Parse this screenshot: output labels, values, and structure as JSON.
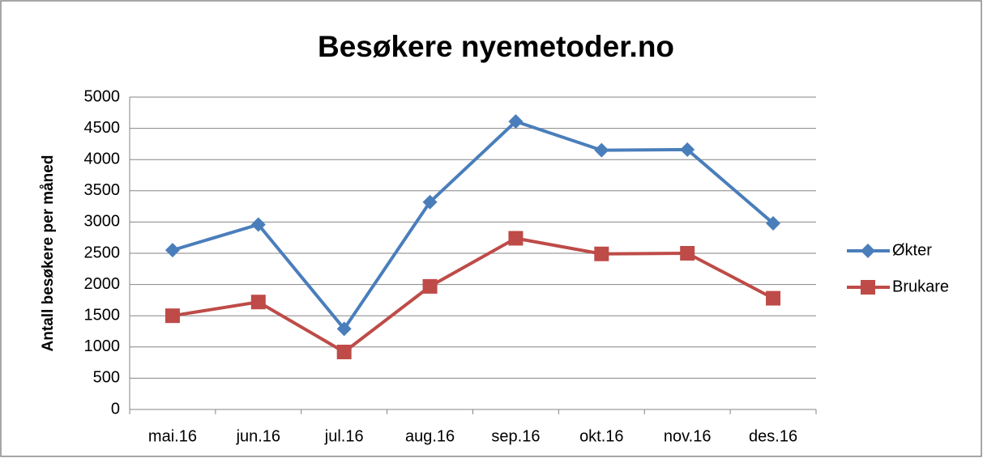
{
  "chart_data": {
    "type": "line",
    "title": "Besøkere nyemetoder.no",
    "y_label": "Antall besøkere per måned",
    "categories": [
      "mai.16",
      "jun.16",
      "jul.16",
      "aug.16",
      "sep.16",
      "okt.16",
      "nov.16",
      "des.16"
    ],
    "series": [
      {
        "name": "Økter",
        "color": "#4a7ebb",
        "marker": "diamond",
        "values": [
          2550,
          2960,
          1290,
          3320,
          4610,
          4150,
          4160,
          2980
        ]
      },
      {
        "name": "Brukare",
        "color": "#be4b48",
        "marker": "square",
        "values": [
          1500,
          1720,
          920,
          1970,
          2740,
          2490,
          2500,
          1780
        ]
      }
    ],
    "ylim": [
      0,
      5000
    ],
    "yticks": [
      0,
      500,
      1000,
      1500,
      2000,
      2500,
      3000,
      3500,
      4000,
      4500,
      5000
    ],
    "grid": true,
    "legend": "right"
  }
}
